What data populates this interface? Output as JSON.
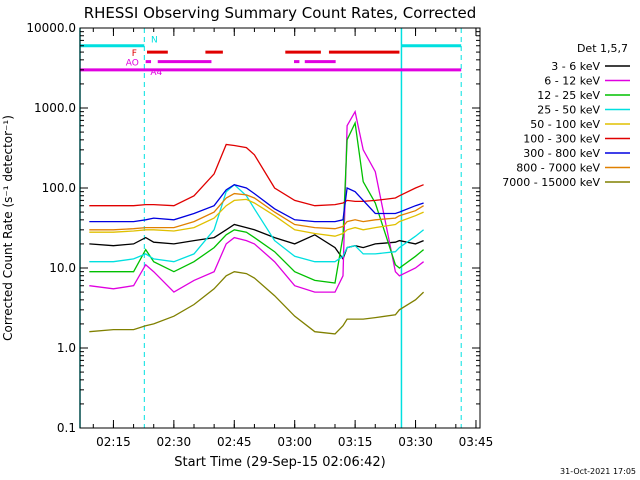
{
  "chart_data": {
    "type": "line",
    "title": "RHESSI Observing Summary Count Rates, Corrected",
    "xlabel": "Start Time (29-Sep-15 02:06:42)",
    "ylabel": "Corrected Count Rate (s⁻¹ detector⁻¹)",
    "yscale": "log",
    "ylim": [
      0.1,
      10000
    ],
    "xlim": [
      "02:06:42",
      "03:46:00"
    ],
    "xticks": [
      "02:15",
      "02:30",
      "02:45",
      "03:00",
      "03:15",
      "03:30",
      "03:45"
    ],
    "yticks": [
      "0.1",
      "1.0",
      "10.0",
      "100.0",
      "1000.0",
      "10000.0"
    ],
    "legend": {
      "title": "Det 1,5,7",
      "position": "right"
    },
    "footer": "31-Oct-2021 17:05",
    "vlines": [
      {
        "time": "02:06:42",
        "style": "solid",
        "color": "#00e0e0"
      },
      {
        "time": "02:22:40",
        "style": "dashed",
        "color": "#00e0e0"
      },
      {
        "time": "03:26:30",
        "style": "solid",
        "color": "#00e0e0"
      },
      {
        "time": "03:41:20",
        "style": "dashed",
        "color": "#00e0e0"
      }
    ],
    "flags": [
      {
        "label": "N",
        "color": "#00e0e0",
        "level": 6000,
        "segments": [
          [
            "02:06:42",
            "02:22:40"
          ],
          [
            "03:26:30",
            "03:41:20"
          ]
        ]
      },
      {
        "label": "F",
        "color": "#e00000",
        "level": 5000,
        "segments": [
          [
            "02:23:20",
            "02:28:30"
          ],
          [
            "02:37:50",
            "02:42:10"
          ],
          [
            "02:57:40",
            "03:06:30"
          ],
          [
            "03:08:30",
            "03:26:00"
          ]
        ]
      },
      {
        "label": "AO",
        "color": "#e000e0",
        "level": 3800,
        "segments": [
          [
            "02:23:00",
            "02:24:20"
          ],
          [
            "02:26:00",
            "02:39:20"
          ],
          [
            "02:59:50",
            "03:01:10"
          ],
          [
            "03:02:30",
            "03:10:10"
          ]
        ]
      },
      {
        "label": "A4",
        "color": "#e000e0",
        "level": 3000,
        "segments": [
          [
            "02:06:42",
            "03:41:20"
          ]
        ]
      }
    ],
    "x": [
      "02:09",
      "02:15",
      "02:20",
      "02:23",
      "02:25",
      "02:30",
      "02:35",
      "02:40",
      "02:43",
      "02:45",
      "02:48",
      "02:50",
      "02:55",
      "03:00",
      "03:05",
      "03:10",
      "03:12",
      "03:13",
      "03:15",
      "03:17",
      "03:20",
      "03:25",
      "03:26",
      "03:30",
      "03:32"
    ],
    "series": [
      {
        "name": "3 - 6 keV",
        "color": "#000000",
        "values": [
          20,
          19,
          20,
          24,
          21,
          20,
          22,
          24,
          30,
          35,
          32,
          30,
          24,
          20,
          26,
          18,
          13,
          18,
          19,
          18,
          20,
          21,
          22,
          20,
          22
        ]
      },
      {
        "name": "6 - 12 keV",
        "color": "#e000e0",
        "values": [
          6,
          5.5,
          6,
          11,
          9,
          5,
          7,
          9,
          20,
          24,
          22,
          20,
          12,
          6,
          5,
          5,
          8,
          600,
          900,
          300,
          160,
          9,
          8,
          10,
          12
        ]
      },
      {
        "name": "12 - 25 keV",
        "color": "#00c000",
        "values": [
          9,
          9,
          9,
          17,
          12,
          9,
          12,
          18,
          26,
          30,
          28,
          24,
          16,
          9,
          7,
          6.5,
          25,
          400,
          650,
          120,
          65,
          11,
          10,
          14,
          17
        ]
      },
      {
        "name": "25 - 50 keV",
        "color": "#00e0e0",
        "values": [
          12,
          12,
          13,
          15,
          13,
          12,
          15,
          30,
          90,
          110,
          80,
          55,
          22,
          14,
          12,
          12,
          14,
          18,
          19,
          15,
          15,
          16,
          18,
          25,
          30
        ]
      },
      {
        "name": "50 - 100 keV",
        "color": "#e0c000",
        "values": [
          28,
          28,
          29,
          30,
          30,
          29,
          32,
          42,
          60,
          70,
          72,
          65,
          45,
          30,
          27,
          25,
          27,
          30,
          32,
          30,
          32,
          35,
          38,
          45,
          50
        ]
      },
      {
        "name": "100 - 300 keV",
        "color": "#e00000",
        "values": [
          60,
          60,
          60,
          62,
          62,
          60,
          80,
          150,
          350,
          340,
          320,
          260,
          100,
          70,
          60,
          62,
          65,
          70,
          68,
          68,
          70,
          75,
          80,
          100,
          110
        ]
      },
      {
        "name": "300 - 800 keV",
        "color": "#0000e0",
        "values": [
          38,
          38,
          38,
          40,
          42,
          40,
          48,
          60,
          95,
          110,
          100,
          85,
          55,
          40,
          38,
          38,
          40,
          100,
          90,
          70,
          48,
          48,
          50,
          60,
          65
        ]
      },
      {
        "name": "800 - 7000 keV",
        "color": "#e08000",
        "values": [
          30,
          30,
          31,
          32,
          32,
          32,
          38,
          50,
          75,
          85,
          82,
          75,
          50,
          35,
          32,
          31,
          33,
          38,
          40,
          38,
          40,
          42,
          45,
          52,
          60
        ]
      },
      {
        "name": "7000 - 15000 keV",
        "color": "#808000",
        "values": [
          1.6,
          1.7,
          1.7,
          1.9,
          2.0,
          2.5,
          3.5,
          5.5,
          8,
          9,
          8.5,
          7.5,
          4.5,
          2.5,
          1.6,
          1.5,
          1.9,
          2.3,
          2.3,
          2.3,
          2.4,
          2.6,
          3,
          4,
          5
        ]
      }
    ]
  }
}
